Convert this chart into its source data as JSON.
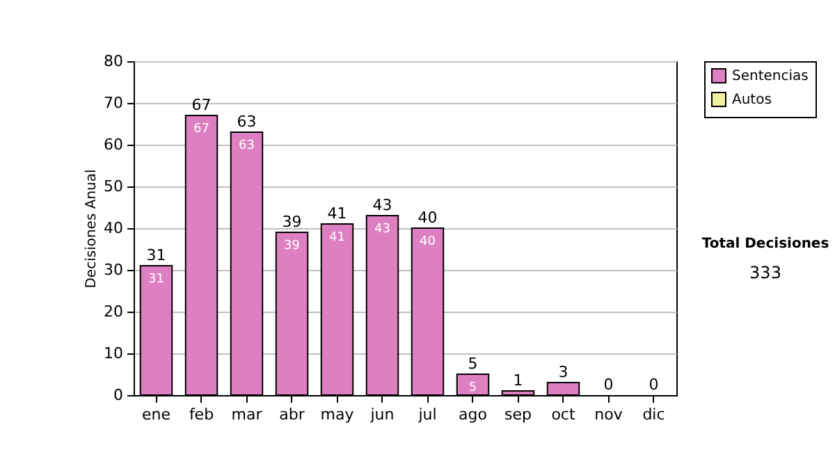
{
  "chart_data": {
    "type": "bar",
    "ylabel": "Decisiones Anual",
    "categories": [
      "ene",
      "feb",
      "mar",
      "abr",
      "may",
      "jun",
      "jul",
      "ago",
      "sep",
      "oct",
      "nov",
      "dic"
    ],
    "series": [
      {
        "name": "Sentencias",
        "color": "#dd7fc0",
        "values": [
          31,
          67,
          63,
          39,
          41,
          43,
          40,
          5,
          1,
          3,
          0,
          0
        ],
        "value_labels": [
          "31",
          "67",
          "63",
          "39",
          "41",
          "43",
          "40",
          "5",
          null,
          null,
          null,
          null
        ]
      },
      {
        "name": "Autos",
        "color": "#f0f0a0",
        "values": [
          0,
          0,
          0,
          0,
          0,
          0,
          0,
          0,
          0,
          0,
          0,
          0
        ]
      }
    ],
    "stacked": true,
    "totals": [
      "31",
      "67",
      "63",
      "39",
      "41",
      "43",
      "40",
      "5",
      "1",
      "3",
      "0",
      "0"
    ],
    "ylim": [
      0,
      80
    ],
    "yticks": [
      0,
      10,
      20,
      30,
      40,
      50,
      60,
      70,
      80
    ],
    "grid": "y",
    "legend": "right",
    "annotations": [
      "Total Decisiones",
      "333"
    ]
  }
}
